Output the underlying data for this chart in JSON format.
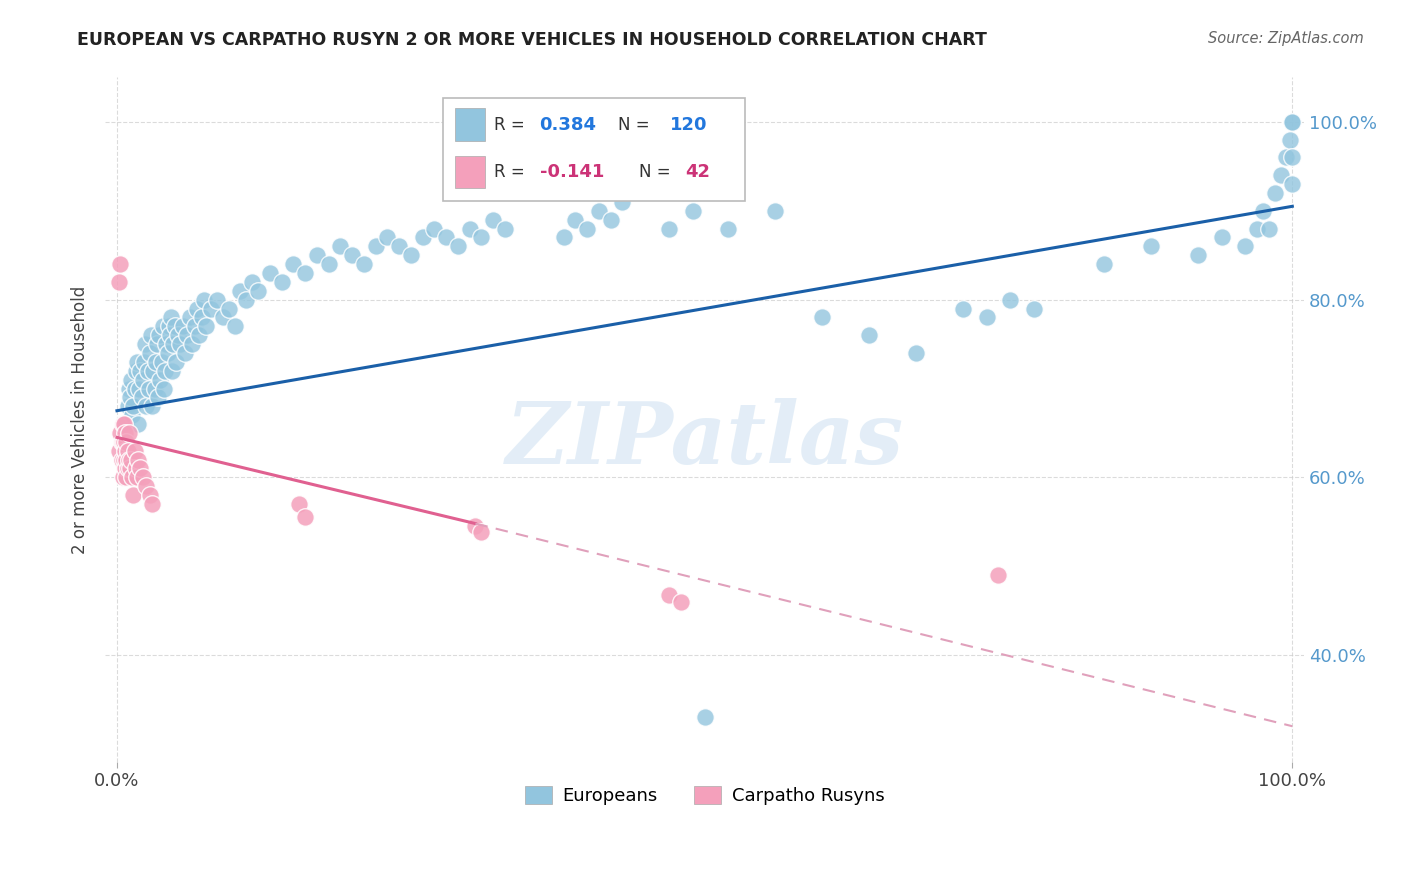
{
  "title": "EUROPEAN VS CARPATHO RUSYN 2 OR MORE VEHICLES IN HOUSEHOLD CORRELATION CHART",
  "source": "Source: ZipAtlas.com",
  "ylabel_label": "2 or more Vehicles in Household",
  "watermark": "ZIPatlas",
  "european_color": "#92c5de",
  "carpatho_color": "#f4a0bb",
  "european_line_color": "#1a5fa8",
  "carpatho_line_color": "#e06090",
  "carpatho_dashed_color": "#e0a0bb",
  "background_color": "#ffffff",
  "grid_color": "#cccccc",
  "european_line": {
    "x0": 0.0,
    "y0": 0.675,
    "x1": 1.0,
    "y1": 0.905
  },
  "carpatho_line_solid": {
    "x0": 0.0,
    "y0": 0.645,
    "x1": 0.305,
    "y1": 0.548
  },
  "carpatho_line_dashed": {
    "x0": 0.305,
    "y0": 0.548,
    "x1": 1.0,
    "y1": 0.32
  },
  "xlim": [
    -0.01,
    1.01
  ],
  "ylim": [
    0.28,
    1.05
  ],
  "eu_x": [
    0.008,
    0.009,
    0.01,
    0.011,
    0.012,
    0.013,
    0.014,
    0.015,
    0.016,
    0.017,
    0.018,
    0.019,
    0.02,
    0.021,
    0.022,
    0.023,
    0.024,
    0.025,
    0.026,
    0.027,
    0.028,
    0.029,
    0.03,
    0.031,
    0.032,
    0.033,
    0.034,
    0.035,
    0.036,
    0.037,
    0.038,
    0.039,
    0.04,
    0.041,
    0.042,
    0.043,
    0.044,
    0.045,
    0.046,
    0.047,
    0.048,
    0.049,
    0.05,
    0.052,
    0.054,
    0.056,
    0.058,
    0.06,
    0.062,
    0.064,
    0.066,
    0.068,
    0.07,
    0.072,
    0.074,
    0.076,
    0.08,
    0.085,
    0.09,
    0.095,
    0.1,
    0.105,
    0.11,
    0.115,
    0.12,
    0.13,
    0.14,
    0.15,
    0.16,
    0.17,
    0.18,
    0.19,
    0.2,
    0.21,
    0.22,
    0.23,
    0.24,
    0.25,
    0.26,
    0.27,
    0.28,
    0.29,
    0.3,
    0.31,
    0.32,
    0.33,
    0.38,
    0.39,
    0.4,
    0.41,
    0.42,
    0.43,
    0.47,
    0.49,
    0.5,
    0.52,
    0.56,
    0.6,
    0.64,
    0.68,
    0.72,
    0.74,
    0.76,
    0.78,
    0.84,
    0.88,
    0.92,
    0.94,
    0.96,
    0.97,
    0.975,
    0.98,
    0.985,
    0.99,
    0.995,
    0.998,
    1.0,
    1.0,
    1.0,
    1.0
  ],
  "eu_y": [
    0.66,
    0.68,
    0.7,
    0.69,
    0.71,
    0.67,
    0.68,
    0.7,
    0.72,
    0.73,
    0.66,
    0.7,
    0.72,
    0.69,
    0.71,
    0.73,
    0.75,
    0.68,
    0.72,
    0.7,
    0.74,
    0.76,
    0.68,
    0.72,
    0.7,
    0.73,
    0.75,
    0.69,
    0.76,
    0.71,
    0.73,
    0.77,
    0.7,
    0.72,
    0.75,
    0.74,
    0.77,
    0.76,
    0.78,
    0.72,
    0.75,
    0.77,
    0.73,
    0.76,
    0.75,
    0.77,
    0.74,
    0.76,
    0.78,
    0.75,
    0.77,
    0.79,
    0.76,
    0.78,
    0.8,
    0.77,
    0.79,
    0.8,
    0.78,
    0.79,
    0.77,
    0.81,
    0.8,
    0.82,
    0.81,
    0.83,
    0.82,
    0.84,
    0.83,
    0.85,
    0.84,
    0.86,
    0.85,
    0.84,
    0.86,
    0.87,
    0.86,
    0.85,
    0.87,
    0.88,
    0.87,
    0.86,
    0.88,
    0.87,
    0.89,
    0.88,
    0.87,
    0.89,
    0.88,
    0.9,
    0.89,
    0.91,
    0.88,
    0.9,
    0.33,
    0.88,
    0.9,
    0.78,
    0.76,
    0.74,
    0.79,
    0.78,
    0.8,
    0.79,
    0.84,
    0.86,
    0.85,
    0.87,
    0.86,
    0.88,
    0.9,
    0.88,
    0.92,
    0.94,
    0.96,
    0.98,
    0.93,
    0.96,
    1.0,
    1.0
  ],
  "cp_x": [
    0.002,
    0.003,
    0.004,
    0.004,
    0.005,
    0.005,
    0.005,
    0.006,
    0.006,
    0.006,
    0.007,
    0.007,
    0.007,
    0.008,
    0.008,
    0.008,
    0.009,
    0.009,
    0.01,
    0.01,
    0.011,
    0.012,
    0.013,
    0.014,
    0.015,
    0.016,
    0.017,
    0.018,
    0.02,
    0.022,
    0.025,
    0.028,
    0.03,
    0.155,
    0.16,
    0.305,
    0.31,
    0.47,
    0.48,
    0.75,
    0.002,
    0.003
  ],
  "cp_y": [
    0.63,
    0.65,
    0.64,
    0.62,
    0.6,
    0.64,
    0.66,
    0.62,
    0.64,
    0.66,
    0.61,
    0.63,
    0.65,
    0.62,
    0.6,
    0.64,
    0.61,
    0.63,
    0.65,
    0.62,
    0.61,
    0.62,
    0.6,
    0.58,
    0.63,
    0.61,
    0.6,
    0.62,
    0.61,
    0.6,
    0.59,
    0.58,
    0.57,
    0.57,
    0.555,
    0.545,
    0.538,
    0.468,
    0.46,
    0.49,
    0.82,
    0.84
  ]
}
